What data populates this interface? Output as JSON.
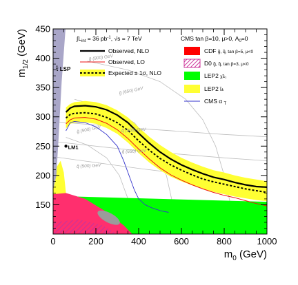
{
  "chart_data": {
    "type": "line",
    "xlabel": "m",
    "xlabel_sub": "0",
    "xlabel_unit": " (GeV)",
    "ylabel": "m",
    "ylabel_sub": "1/2",
    "ylabel_unit": " (GeV)",
    "xlim": [
      0,
      1000
    ],
    "ylim": [
      100,
      450
    ],
    "x_ticks": [
      0,
      200,
      400,
      600,
      800,
      1000
    ],
    "y_ticks": [
      150,
      200,
      250,
      300,
      350,
      400,
      450
    ],
    "grid": false,
    "lumi_text": "∫L",
    "lumi_sub": "int",
    "lumi_rest": " = 36 pb",
    "lumi_sup": "-1",
    "energy_text": ", √s = 7 TeV",
    "cms_header": "CMS   tan β=10, μ>0, A",
    "cms_header_sub": "0",
    "cms_header_rest": "=0",
    "lsp_label": "τ̃ LSP",
    "lm1_label": "LM1",
    "lm1_point": {
      "x": 60,
      "y": 250
    },
    "legend_left": [
      {
        "name": "Observed, NLO",
        "color": "#000000",
        "style": "solid-thick"
      },
      {
        "name": "Observed, LO",
        "color": "#ee1111",
        "style": "solid"
      },
      {
        "name": "Expected ± 1σ, NLO",
        "color": "#000000",
        "style": "dashed-band"
      }
    ],
    "legend_right": [
      {
        "label": "CDF",
        "detail": "g̃, q̃, tan β=5, μ<0",
        "color": "#ff0000",
        "style": "box"
      },
      {
        "label": "D0",
        "detail": "g̃, q̃, tan β=3, μ<0",
        "color": "#cc3399",
        "style": "hatch"
      },
      {
        "label": "LEP2",
        "detail": "χ̃±₁",
        "color": "#00ff00",
        "style": "box"
      },
      {
        "label": "LEP2",
        "detail": "l̃±",
        "color": "#ffff33",
        "style": "box"
      },
      {
        "label": "CMS α",
        "detail": "T",
        "color": "#3333cc",
        "style": "line"
      }
    ],
    "series": [
      {
        "name": "Observed, NLO",
        "color": "#000000",
        "x": [
          60,
          80,
          100,
          150,
          200,
          250,
          300,
          350,
          400,
          450,
          500,
          550,
          600,
          650,
          700,
          750,
          800,
          850,
          900,
          950,
          1000
        ],
        "y": [
          308,
          315,
          318,
          319,
          317,
          312,
          303,
          290,
          272,
          255,
          240,
          228,
          218,
          210,
          203,
          197,
          193,
          188,
          184,
          181,
          180
        ]
      },
      {
        "name": "Observed, LO",
        "color": "#ee1111",
        "x": [
          60,
          80,
          100,
          150,
          200,
          250,
          300,
          350,
          400,
          450,
          500,
          550,
          600,
          650,
          700,
          750,
          800,
          850,
          900,
          950,
          1000
        ],
        "y": [
          288,
          295,
          298,
          299,
          296,
          289,
          278,
          263,
          245,
          228,
          213,
          201,
          192,
          184,
          177,
          171,
          166,
          162,
          157,
          152,
          148
        ]
      },
      {
        "name": "Expected ± 1σ, NLO",
        "color": "#000000",
        "dash": true,
        "x": [
          60,
          80,
          100,
          150,
          200,
          250,
          300,
          350,
          400,
          450,
          500,
          550,
          600,
          650,
          700,
          750,
          800,
          850,
          900,
          950,
          1000
        ],
        "y": [
          298,
          304,
          306,
          307,
          305,
          299,
          290,
          277,
          259,
          243,
          229,
          218,
          209,
          201,
          194,
          189,
          185,
          181,
          177,
          174,
          171
        ],
        "band_low": [
          280,
          288,
          290,
          291,
          288,
          281,
          271,
          256,
          238,
          222,
          209,
          198,
          190,
          183,
          177,
          172,
          168,
          164,
          161,
          158,
          156
        ],
        "band_high": [
          316,
          322,
          325,
          327,
          325,
          320,
          311,
          299,
          282,
          266,
          252,
          240,
          230,
          222,
          215,
          209,
          205,
          200,
          196,
          193,
          190
        ]
      },
      {
        "name": "CMS αT",
        "color": "#3333cc",
        "x": [
          60,
          80,
          100,
          150,
          200,
          250,
          300,
          330,
          360,
          380,
          400,
          430,
          460,
          500,
          540
        ],
        "y": [
          276,
          290,
          292,
          290,
          283,
          270,
          250,
          225,
          195,
          175,
          160,
          150,
          145,
          140,
          137
        ]
      }
    ],
    "contours": [
      {
        "label": "q̃ (500) GeV"
      },
      {
        "label": "q̃ (650) GeV"
      },
      {
        "label": "q̃ (800) GeV"
      },
      {
        "label": "g̃ (800) GeV"
      },
      {
        "label": "g̃ (650) GeV"
      },
      {
        "label": "g̃ (500) GeV"
      }
    ]
  }
}
